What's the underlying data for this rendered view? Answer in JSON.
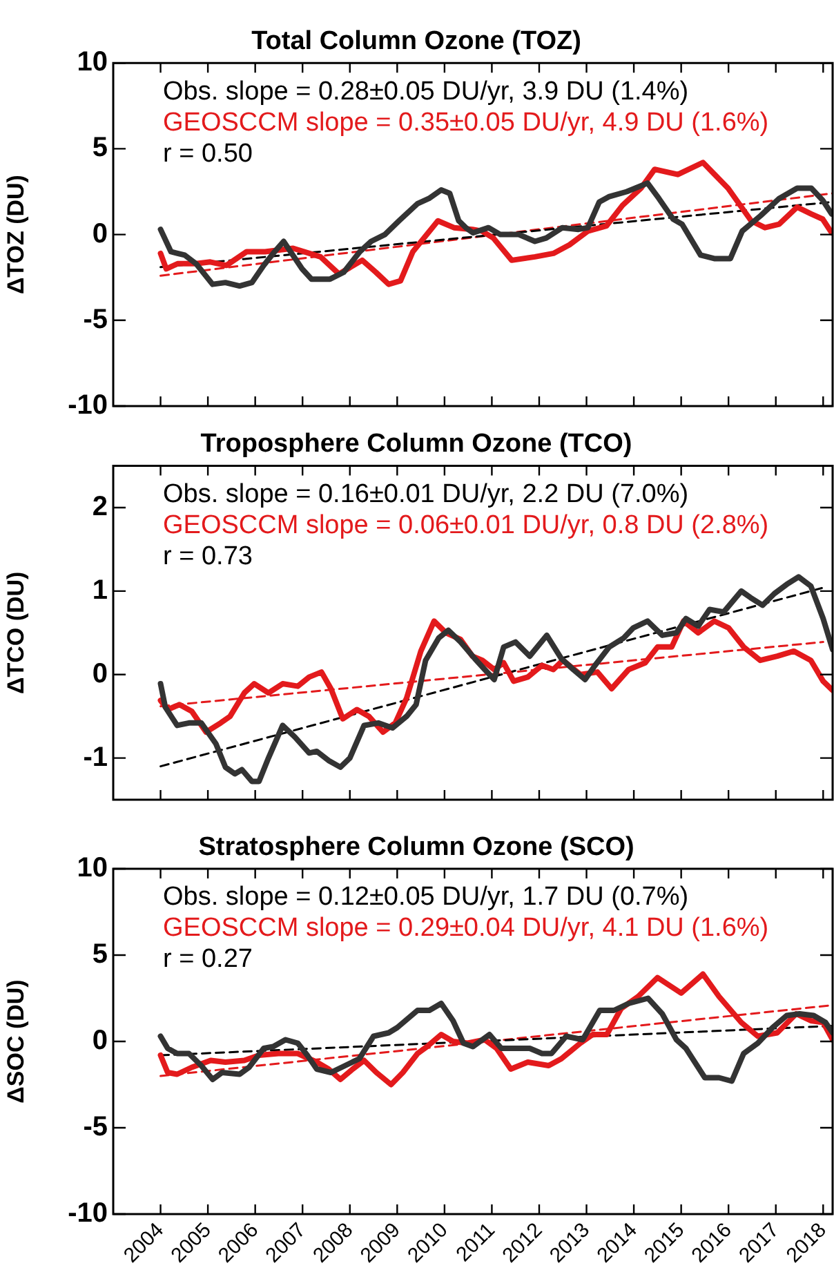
{
  "chart_data": [
    {
      "type": "line",
      "title": "Total Column Ozone (TOZ)",
      "ylabel": "ΔTOZ (DU)",
      "xlim": [
        2003,
        2018.2
      ],
      "xticks": [
        2004,
        2005,
        2006,
        2007,
        2008,
        2009,
        2010,
        2011,
        2012,
        2013,
        2014,
        2015,
        2016,
        2017,
        2018
      ],
      "ylim": [
        -10,
        10
      ],
      "yticks": [
        -10,
        -5,
        0,
        5,
        10
      ],
      "tick_labels": "y",
      "marker": "none",
      "annotations": [
        "Obs. slope = 0.28±0.05 DU/yr, 3.9 DU (1.4%)",
        "GEOSCCM slope = 0.35±0.05 DU/yr, 4.9 DU (1.6%)",
        "r = 0.50"
      ],
      "series": [
        {
          "color": "#333333",
          "x": [
            2004.0,
            2004.22,
            2004.51,
            2004.75,
            2005.1,
            2005.37,
            2005.67,
            2005.93,
            2006.18,
            2006.38,
            2006.6,
            2006.99,
            2007.19,
            2007.58,
            2007.87,
            2008.21,
            2008.45,
            2008.74,
            2009.04,
            2009.43,
            2009.67,
            2009.93,
            2010.11,
            2010.3,
            2010.45,
            2010.6,
            2010.93,
            2011.18,
            2011.57,
            2011.91,
            2012.15,
            2012.49,
            2012.83,
            2013.03,
            2013.27,
            2013.47,
            2013.85,
            2014.29,
            2014.53,
            2014.83,
            2015.02,
            2015.41,
            2015.7,
            2016.04,
            2016.29,
            2016.68,
            2017.07,
            2017.45,
            2017.75,
            2017.99,
            2018.18
          ],
          "values": [
            0.3,
            -1.0,
            -1.2,
            -1.7,
            -2.9,
            -2.8,
            -3.0,
            -2.8,
            -1.8,
            -1.1,
            -0.4,
            -2.0,
            -2.6,
            -2.6,
            -2.2,
            -1.0,
            -0.4,
            0,
            0.8,
            1.8,
            2.1,
            2.6,
            2.4,
            0.8,
            0.4,
            0.1,
            0.4,
            0,
            0,
            -0.4,
            -0.2,
            0.4,
            0.3,
            0.4,
            1.9,
            2.2,
            2.5,
            3.0,
            2.1,
            0.9,
            0.6,
            -1.2,
            -1.4,
            -1.4,
            0.2,
            1.1,
            2.1,
            2.7,
            2.7,
            2.0,
            1.2
          ]
        },
        {
          "color": "#e31a1c",
          "x": [
            2004.0,
            2004.12,
            2004.36,
            2004.75,
            2005.05,
            2005.39,
            2005.82,
            2006.21,
            2006.8,
            2007.38,
            2007.77,
            2008.26,
            2008.55,
            2008.82,
            2009.07,
            2009.33,
            2009.86,
            2010.2,
            2010.59,
            2010.79,
            2011.03,
            2011.18,
            2011.42,
            2011.91,
            2012.3,
            2012.64,
            2013.03,
            2013.42,
            2013.76,
            2014.15,
            2014.44,
            2014.93,
            2015.46,
            2015.99,
            2016.48,
            2016.77,
            2017.07,
            2017.45,
            2017.75,
            2017.99,
            2018.18
          ],
          "values": [
            -1.1,
            -2.0,
            -1.7,
            -1.7,
            -1.6,
            -1.8,
            -1.0,
            -1.0,
            -0.8,
            -1.3,
            -2.3,
            -1.5,
            -2.2,
            -2.9,
            -2.7,
            -1.0,
            0.8,
            0.4,
            0.3,
            0.2,
            -0.2,
            -0.7,
            -1.5,
            -1.3,
            -1.1,
            -0.6,
            0.2,
            0.5,
            1.7,
            2.7,
            3.8,
            3.5,
            4.2,
            2.7,
            0.8,
            0.4,
            0.6,
            1.6,
            1.2,
            0.9,
            0.1
          ]
        },
        {
          "color": "#000000",
          "line_style": "dashed",
          "x": [
            2004,
            2018.2
          ],
          "values": [
            -1.9,
            1.9
          ]
        },
        {
          "color": "#e31a1c",
          "line_style": "dashed",
          "x": [
            2004,
            2018.2
          ],
          "values": [
            -2.4,
            2.4
          ]
        }
      ]
    },
    {
      "type": "line",
      "title": "Troposphere Column Ozone (TCO)",
      "ylabel": "ΔTCO (DU)",
      "xlim": [
        2003,
        2018.2
      ],
      "xticks": [
        2004,
        2005,
        2006,
        2007,
        2008,
        2009,
        2010,
        2011,
        2012,
        2013,
        2014,
        2015,
        2016,
        2017,
        2018
      ],
      "ylim": [
        -1.5,
        2.5
      ],
      "yticks": [
        -1,
        0,
        1,
        2
      ],
      "tick_labels": "y",
      "marker": "none",
      "annotations": [
        "Obs. slope = 0.16±0.01 DU/yr, 2.2 DU (7.0%)",
        "GEOSCCM slope = 0.06±0.01 DU/yr, 0.8 DU (2.8%)",
        "r = 0.73"
      ],
      "series": [
        {
          "color": "#333333",
          "x": [
            2004.0,
            2004.1,
            2004.35,
            2004.6,
            2004.86,
            2005.17,
            2005.37,
            2005.57,
            2005.72,
            2005.93,
            2006.08,
            2006.28,
            2006.58,
            2006.84,
            2007.14,
            2007.3,
            2007.55,
            2007.8,
            2008.0,
            2008.3,
            2008.6,
            2008.9,
            2009.2,
            2009.4,
            2009.6,
            2009.88,
            2010.08,
            2010.34,
            2010.64,
            2010.85,
            2011.05,
            2011.25,
            2011.5,
            2011.8,
            2012.16,
            2012.47,
            2012.72,
            2012.97,
            2013.18,
            2013.48,
            2013.79,
            2013.99,
            2014.29,
            2014.6,
            2014.9,
            2015.1,
            2015.36,
            2015.6,
            2015.9,
            2016.27,
            2016.47,
            2016.72,
            2016.97,
            2017.23,
            2017.48,
            2017.74,
            2018.0,
            2018.2
          ],
          "values": [
            -0.11,
            -0.39,
            -0.61,
            -0.58,
            -0.58,
            -0.83,
            -1.11,
            -1.19,
            -1.14,
            -1.28,
            -1.28,
            -1.0,
            -0.61,
            -0.75,
            -0.94,
            -0.92,
            -1.03,
            -1.11,
            -1.0,
            -0.61,
            -0.58,
            -0.64,
            -0.5,
            -0.36,
            0.17,
            0.44,
            0.53,
            0.39,
            0.19,
            0.06,
            -0.06,
            0.33,
            0.39,
            0.22,
            0.47,
            0.19,
            0.06,
            -0.06,
            0.11,
            0.33,
            0.44,
            0.56,
            0.64,
            0.47,
            0.5,
            0.67,
            0.58,
            0.78,
            0.75,
            1.0,
            0.92,
            0.83,
            0.97,
            1.08,
            1.17,
            1.06,
            0.67,
            0.3
          ]
        },
        {
          "color": "#e31a1c",
          "x": [
            2004.0,
            2004.15,
            2004.4,
            2004.66,
            2004.96,
            2005.27,
            2005.47,
            2005.77,
            2005.98,
            2006.28,
            2006.58,
            2006.9,
            2007.14,
            2007.4,
            2007.6,
            2007.85,
            2008.15,
            2008.4,
            2008.7,
            2008.96,
            2009.2,
            2009.5,
            2009.78,
            2010.03,
            2010.34,
            2010.59,
            2010.8,
            2011.05,
            2011.25,
            2011.46,
            2011.76,
            2012.06,
            2012.3,
            2012.5,
            2012.87,
            2013.23,
            2013.53,
            2013.89,
            2014.24,
            2014.5,
            2014.8,
            2015.05,
            2015.36,
            2015.7,
            2016.0,
            2016.32,
            2016.67,
            2017.03,
            2017.38,
            2017.74,
            2018.0,
            2018.2
          ],
          "values": [
            -0.31,
            -0.42,
            -0.36,
            -0.44,
            -0.69,
            -0.58,
            -0.5,
            -0.22,
            -0.11,
            -0.22,
            -0.11,
            -0.14,
            -0.03,
            0.03,
            -0.17,
            -0.53,
            -0.42,
            -0.5,
            -0.69,
            -0.58,
            -0.28,
            0.28,
            0.64,
            0.5,
            0.42,
            0.22,
            0.17,
            0.06,
            0.14,
            -0.08,
            -0.03,
            0.11,
            0.06,
            0.17,
            0,
            0.03,
            -0.17,
            0.06,
            0.14,
            0.33,
            0.33,
            0.64,
            0.5,
            0.64,
            0.56,
            0.33,
            0.17,
            0.22,
            0.28,
            0.17,
            -0.08,
            -0.19
          ]
        },
        {
          "color": "#000000",
          "line_style": "dashed",
          "x": [
            2004,
            2018
          ],
          "values": [
            -1.1,
            1.04
          ]
        },
        {
          "color": "#e31a1c",
          "line_style": "dashed",
          "x": [
            2004,
            2018
          ],
          "values": [
            -0.38,
            0.39
          ]
        }
      ]
    },
    {
      "type": "line",
      "title": "Stratosphere Column Ozone (SCO)",
      "ylabel": "ΔSOC (DU)",
      "xlim": [
        2003,
        2018.2
      ],
      "xticks": [
        2004,
        2005,
        2006,
        2007,
        2008,
        2009,
        2010,
        2011,
        2012,
        2013,
        2014,
        2015,
        2016,
        2017,
        2018
      ],
      "ylim": [
        -10,
        10
      ],
      "yticks": [
        -10,
        -5,
        0,
        5,
        10
      ],
      "marker": "none",
      "annotations": [
        "Obs. slope = 0.12±0.05 DU/yr, 1.7 DU (0.7%)",
        "GEOSCCM slope = 0.29±0.04 DU/yr, 4.1 DU (1.6%)",
        "r = 0.27"
      ],
      "series": [
        {
          "color": "#333333",
          "x": [
            2004.0,
            2004.15,
            2004.35,
            2004.6,
            2004.86,
            2005.1,
            2005.3,
            2005.67,
            2005.87,
            2006.18,
            2006.38,
            2006.64,
            2006.9,
            2007.1,
            2007.3,
            2007.6,
            2007.9,
            2008.2,
            2008.5,
            2008.82,
            2009.0,
            2009.43,
            2009.68,
            2009.93,
            2010.18,
            2010.4,
            2010.6,
            2010.95,
            2011.2,
            2011.5,
            2011.8,
            2012.06,
            2012.26,
            2012.57,
            2012.92,
            2013.28,
            2013.58,
            2013.89,
            2014.3,
            2014.6,
            2014.9,
            2015.1,
            2015.5,
            2015.8,
            2016.07,
            2016.32,
            2016.62,
            2016.93,
            2017.23,
            2017.5,
            2017.8,
            2018.05,
            2018.2
          ],
          "values": [
            0.3,
            -0.4,
            -0.7,
            -0.7,
            -1.4,
            -2.2,
            -1.8,
            -1.9,
            -1.5,
            -0.4,
            -0.3,
            0.1,
            -0.1,
            -0.8,
            -1.6,
            -1.8,
            -1.4,
            -1.0,
            0.3,
            0.5,
            0.8,
            1.8,
            1.8,
            2.2,
            1.2,
            -0.1,
            -0.3,
            0.4,
            -0.4,
            -0.4,
            -0.4,
            -0.7,
            -0.7,
            0.3,
            0.1,
            1.8,
            1.8,
            2.2,
            2.5,
            1.6,
            0.1,
            -0.4,
            -2.1,
            -2.1,
            -2.3,
            -0.7,
            -0.1,
            0.8,
            1.5,
            1.6,
            1.5,
            1.1,
            0.5
          ]
        },
        {
          "color": "#e31a1c",
          "x": [
            2004.0,
            2004.15,
            2004.35,
            2004.66,
            2005.06,
            2005.37,
            2005.77,
            2006.08,
            2006.49,
            2006.9,
            2007.3,
            2007.55,
            2007.8,
            2008.06,
            2008.3,
            2008.56,
            2008.87,
            2009.12,
            2009.43,
            2009.63,
            2009.93,
            2010.18,
            2010.49,
            2010.85,
            2011.1,
            2011.4,
            2011.76,
            2012.2,
            2012.47,
            2012.87,
            2013.13,
            2013.43,
            2013.73,
            2014.09,
            2014.5,
            2015.0,
            2015.46,
            2015.8,
            2016.27,
            2016.62,
            2017.03,
            2017.43,
            2017.74,
            2018.0,
            2018.2
          ],
          "values": [
            -0.8,
            -1.8,
            -1.9,
            -1.5,
            -1.1,
            -1.2,
            -1.1,
            -0.8,
            -0.7,
            -0.7,
            -1.2,
            -1.6,
            -2.2,
            -1.6,
            -1.1,
            -1.8,
            -2.5,
            -1.8,
            -0.7,
            -0.3,
            0.4,
            0,
            -0.1,
            0.1,
            -0.4,
            -1.6,
            -1.2,
            -1.4,
            -1.0,
            -0.1,
            0.4,
            0.4,
            1.9,
            2.6,
            3.7,
            2.8,
            3.9,
            2.6,
            1.1,
            0.3,
            0.5,
            1.6,
            1.2,
            1.1,
            0.1
          ]
        },
        {
          "color": "#000000",
          "line_style": "dashed",
          "x": [
            2004,
            2018.2
          ],
          "values": [
            -0.8,
            0.9
          ]
        },
        {
          "color": "#e31a1c",
          "line_style": "dashed",
          "x": [
            2004,
            2018.2
          ],
          "values": [
            -2.0,
            2.1
          ]
        }
      ]
    }
  ]
}
